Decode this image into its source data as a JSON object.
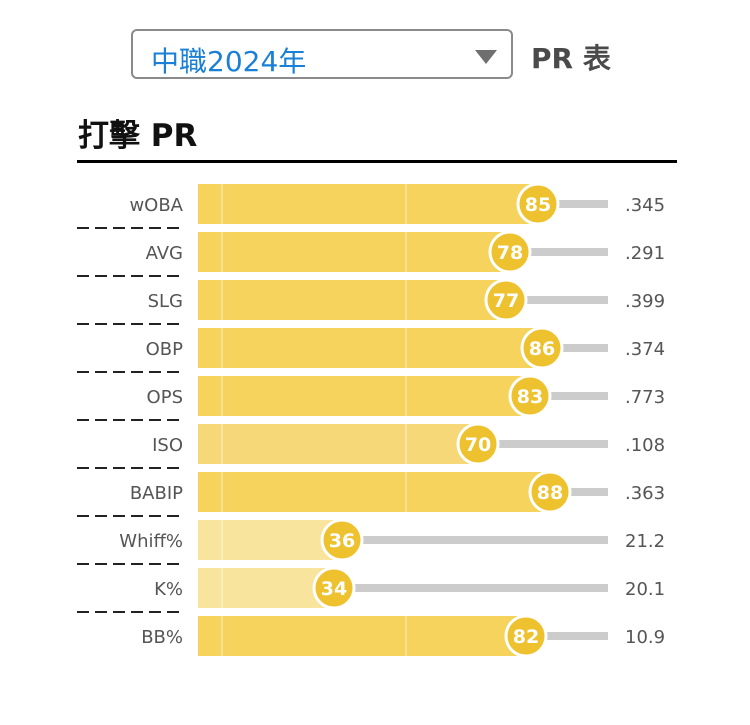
{
  "header": {
    "season_select_value": "中職2024年",
    "table_label": "PR 表"
  },
  "section": {
    "title": "打擊 PR"
  },
  "colors": {
    "bar_high": "#f5d35c",
    "bar_mid": "#f6d878",
    "bar_low": "#f9e49e",
    "badge": "#eec12e",
    "track": "#cccccc",
    "select_text": "#1a7fd6"
  },
  "chart_data": {
    "type": "bar",
    "orientation": "horizontal",
    "categories": [
      "wOBA",
      "AVG",
      "SLG",
      "OBP",
      "OPS",
      "ISO",
      "BABIP",
      "Whiff%",
      "K%",
      "BB%"
    ],
    "values": [
      85,
      78,
      77,
      86,
      83,
      70,
      88,
      36,
      34,
      82
    ],
    "stat_values": [
      ".345",
      ".291",
      ".399",
      ".374",
      ".773",
      ".108",
      ".363",
      "21.2",
      "20.1",
      "10.9"
    ],
    "xlim": [
      0,
      100
    ]
  }
}
